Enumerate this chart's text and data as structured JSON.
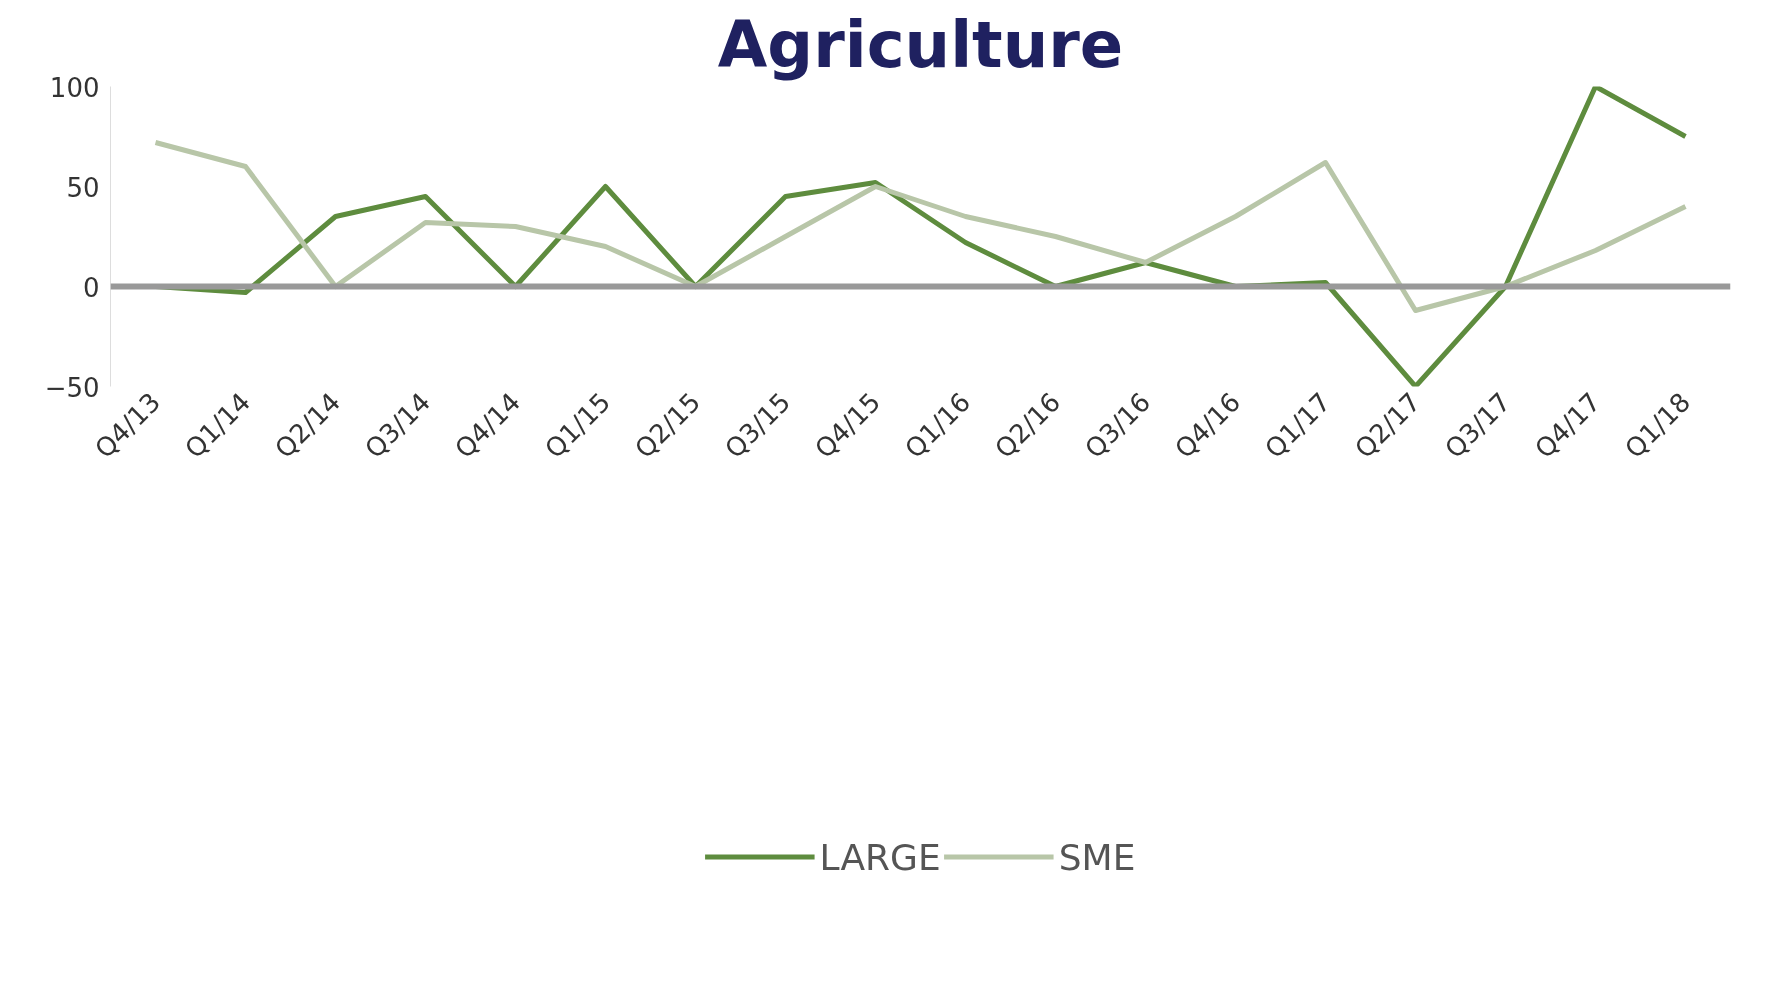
{
  "chart_data": {
    "type": "line",
    "title": "Agriculture",
    "categories": [
      "Q4/13",
      "Q1/14",
      "Q2/14",
      "Q3/14",
      "Q4/14",
      "Q1/15",
      "Q2/15",
      "Q3/15",
      "Q4/15",
      "Q1/16",
      "Q2/16",
      "Q3/16",
      "Q4/16",
      "Q1/17",
      "Q2/17",
      "Q3/17",
      "Q4/17",
      "Q1/18"
    ],
    "series": [
      {
        "name": "LARGE",
        "color": "#5e8c3e",
        "values": [
          0,
          -3,
          35,
          45,
          0,
          50,
          0,
          45,
          52,
          22,
          0,
          12,
          0,
          2,
          -50,
          0,
          100,
          75
        ]
      },
      {
        "name": "SME",
        "color": "#b8c6a8",
        "values": [
          72,
          60,
          0,
          32,
          30,
          20,
          0,
          25,
          50,
          35,
          25,
          12,
          35,
          62,
          -12,
          0,
          18,
          40
        ]
      }
    ],
    "ylim": [
      -50,
      100
    ],
    "yticks": [
      -50,
      0,
      50,
      100
    ],
    "grid": false,
    "legend": "bottom",
    "marker": "none",
    "line_style": "solid",
    "ref_lines": [
      {
        "axis": "y",
        "value": 0,
        "color": "#999999"
      }
    ]
  }
}
